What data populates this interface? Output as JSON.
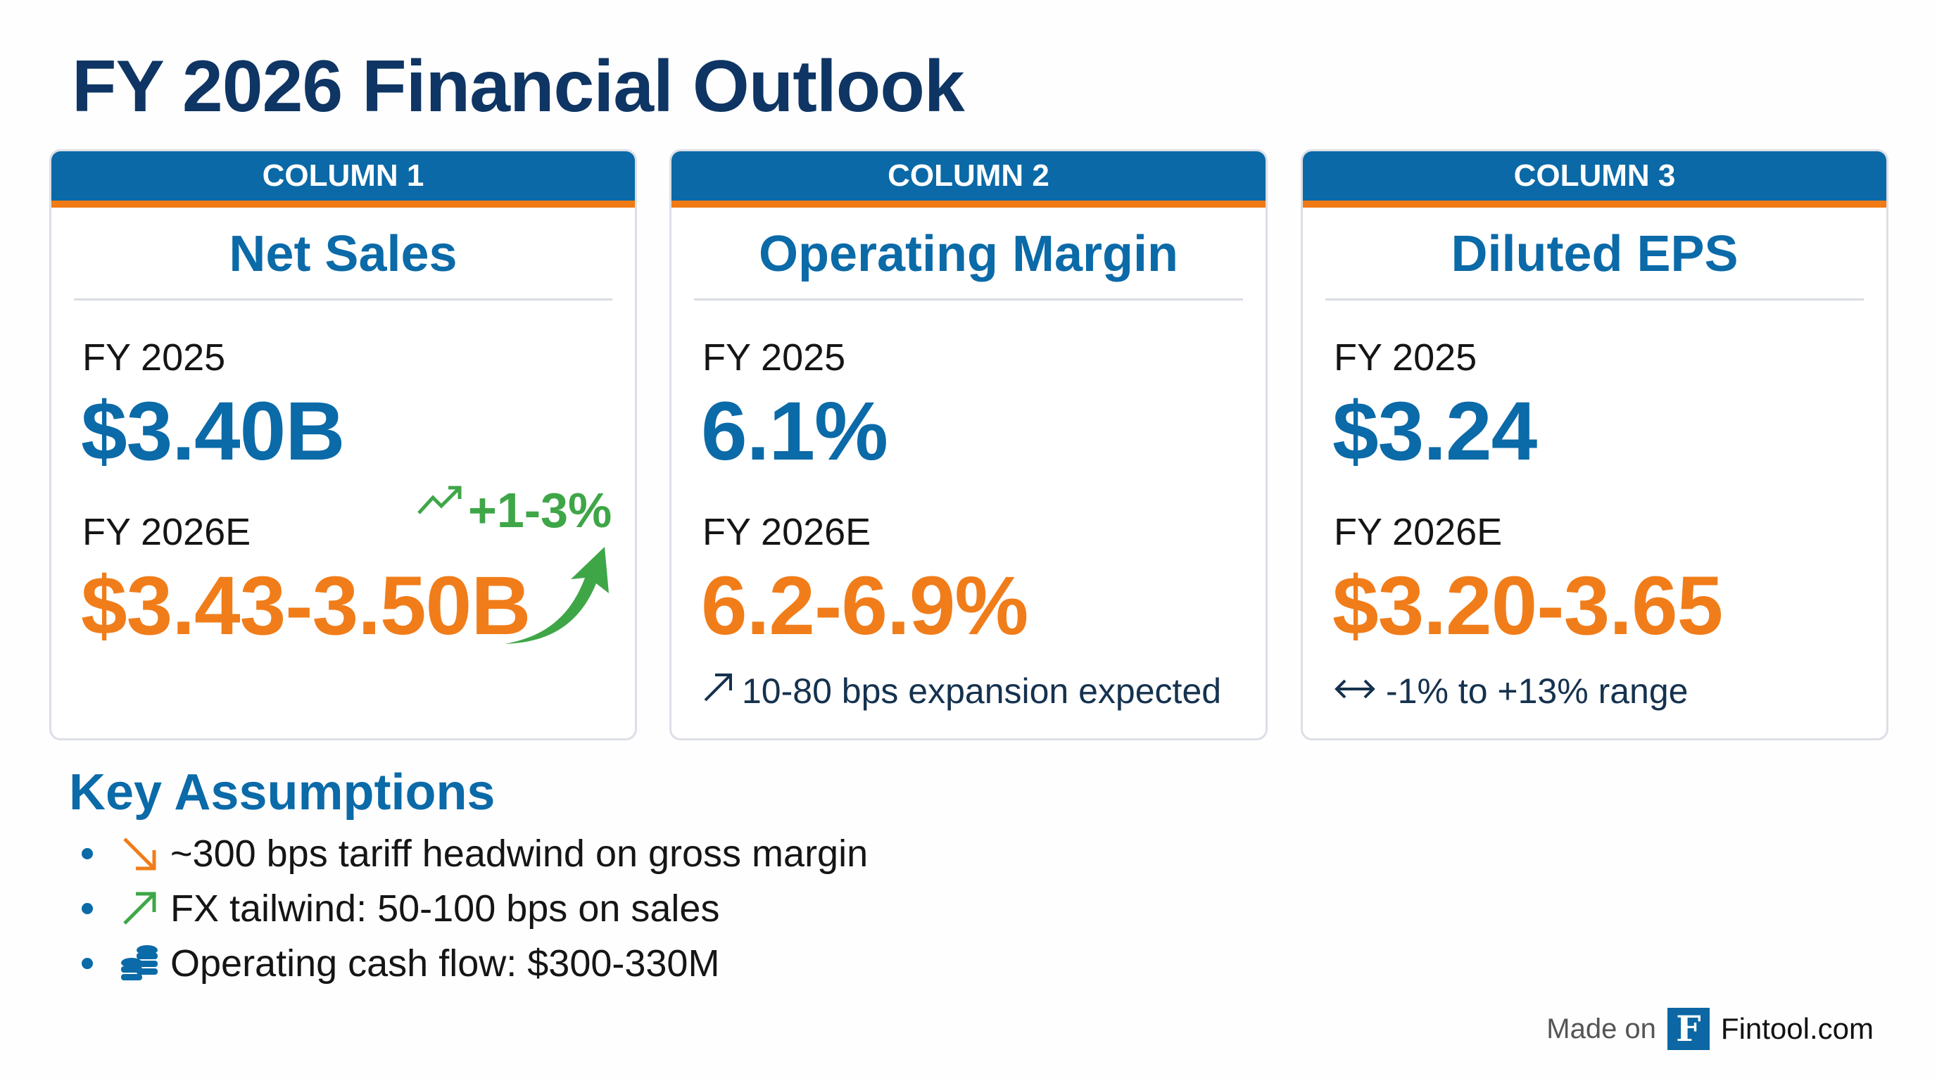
{
  "title": "FY 2026 Financial Outlook",
  "colors": {
    "navy": "#0e3563",
    "blue": "#0a69a6",
    "orange": "#f07d1a",
    "green": "#3fa648"
  },
  "columns": [
    {
      "header": "COLUMN 1",
      "metric": "Net Sales",
      "prior_label": "FY 2025",
      "prior_value": "$3.40B",
      "est_label": "FY 2026E",
      "est_value": "$3.43-3.50B",
      "growth": "+1-3%",
      "growth_icon": "trending-up-icon",
      "arrow_icon": "curved-up-arrow-icon"
    },
    {
      "header": "COLUMN 2",
      "metric": "Operating Margin",
      "prior_label": "FY 2025",
      "prior_value": "6.1%",
      "est_label": "FY 2026E",
      "est_value": "6.2-6.9%",
      "note": "10-80 bps expansion expected",
      "note_icon": "arrow-up-right-icon"
    },
    {
      "header": "COLUMN 3",
      "metric": "Diluted EPS",
      "prior_label": "FY 2025",
      "prior_value": "$3.24",
      "est_label": "FY 2026E",
      "est_value": "$3.20-3.65",
      "note": "-1% to +13% range",
      "note_icon": "arrow-left-right-icon"
    }
  ],
  "key_assumptions": {
    "title": "Key Assumptions",
    "items": [
      {
        "icon": "arrow-down-right-icon",
        "text": "~300 bps tariff headwind on gross margin"
      },
      {
        "icon": "arrow-up-right-icon",
        "text": "FX tailwind: 50-100 bps on sales"
      },
      {
        "icon": "coins-icon",
        "text": "Operating cash flow: $300-330M"
      }
    ]
  },
  "footer": {
    "made_on": "Made on",
    "logo_letter": "F",
    "brand": "Fintool.com"
  }
}
